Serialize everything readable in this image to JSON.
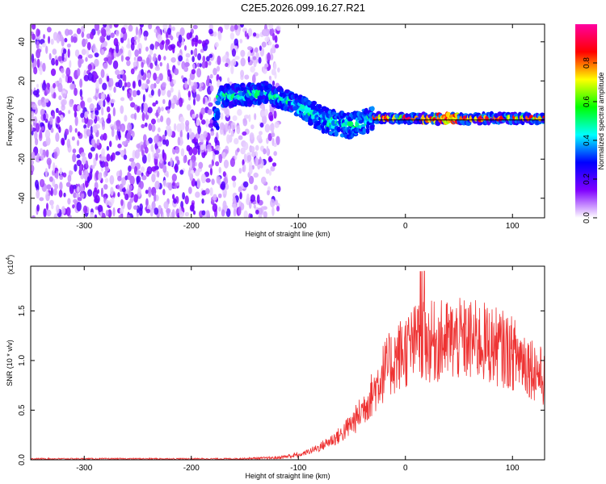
{
  "title": "C2E5.2026.099.16.27.R21",
  "chart_data": [
    {
      "type": "heatmap",
      "xlabel": "Height of straight line (km)",
      "ylabel": "Frequency (Hz)",
      "xlim": [
        -350,
        130
      ],
      "ylim": [
        -50,
        49
      ],
      "x_ticks": [
        -300,
        -200,
        -100,
        0,
        100
      ],
      "y_ticks": [
        -40,
        -20,
        0,
        20,
        40
      ],
      "colorbar": {
        "label": "Normalized spectral amplitude",
        "range": [
          0.0,
          1.0
        ],
        "ticks": [
          "0.0",
          "0.2",
          "0.4",
          "0.6",
          "0.8"
        ],
        "colors": [
          "#ffffff",
          "#8000ff",
          "#0000ff",
          "#00ffff",
          "#00ff00",
          "#ffff00",
          "#ff0000",
          "#ff00a0"
        ]
      },
      "trace_points": [
        {
          "x": -175,
          "f": 12
        },
        {
          "x": -150,
          "f": 13
        },
        {
          "x": -130,
          "f": 14
        },
        {
          "x": -110,
          "f": 10
        },
        {
          "x": -90,
          "f": 4
        },
        {
          "x": -70,
          "f": -1
        },
        {
          "x": -50,
          "f": -3
        },
        {
          "x": -30,
          "f": 1
        },
        {
          "x": 0,
          "f": 1
        },
        {
          "x": 50,
          "f": 0.5
        },
        {
          "x": 100,
          "f": 1
        },
        {
          "x": 130,
          "f": 1
        }
      ]
    },
    {
      "type": "line",
      "xlabel": "Height of straight line (km)",
      "ylabel": "SNR (10 * v/v)",
      "scale_note": "(x10",
      "scale_exp": "4",
      "xlim": [
        -350,
        130
      ],
      "ylim": [
        0,
        1.95
      ],
      "x_ticks": [
        -300,
        -200,
        -100,
        0,
        100
      ],
      "y_ticks": [
        "0.0",
        "0.5",
        "1.0",
        "1.5"
      ],
      "color": "#ee3333",
      "series": [
        {
          "x": -350,
          "y": 0.01
        },
        {
          "x": -250,
          "y": 0.01
        },
        {
          "x": -160,
          "y": 0.01
        },
        {
          "x": -120,
          "y": 0.02
        },
        {
          "x": -100,
          "y": 0.05
        },
        {
          "x": -80,
          "y": 0.15
        },
        {
          "x": -60,
          "y": 0.3
        },
        {
          "x": -45,
          "y": 0.5
        },
        {
          "x": -30,
          "y": 0.8
        },
        {
          "x": -20,
          "y": 1.05
        },
        {
          "x": -5,
          "y": 1.25
        },
        {
          "x": 10,
          "y": 1.38
        },
        {
          "x": 30,
          "y": 1.4
        },
        {
          "x": 50,
          "y": 1.42
        },
        {
          "x": 70,
          "y": 1.4
        },
        {
          "x": 90,
          "y": 1.32
        },
        {
          "x": 110,
          "y": 1.2
        },
        {
          "x": 125,
          "y": 1.02
        },
        {
          "x": 130,
          "y": 0.95
        }
      ]
    }
  ]
}
